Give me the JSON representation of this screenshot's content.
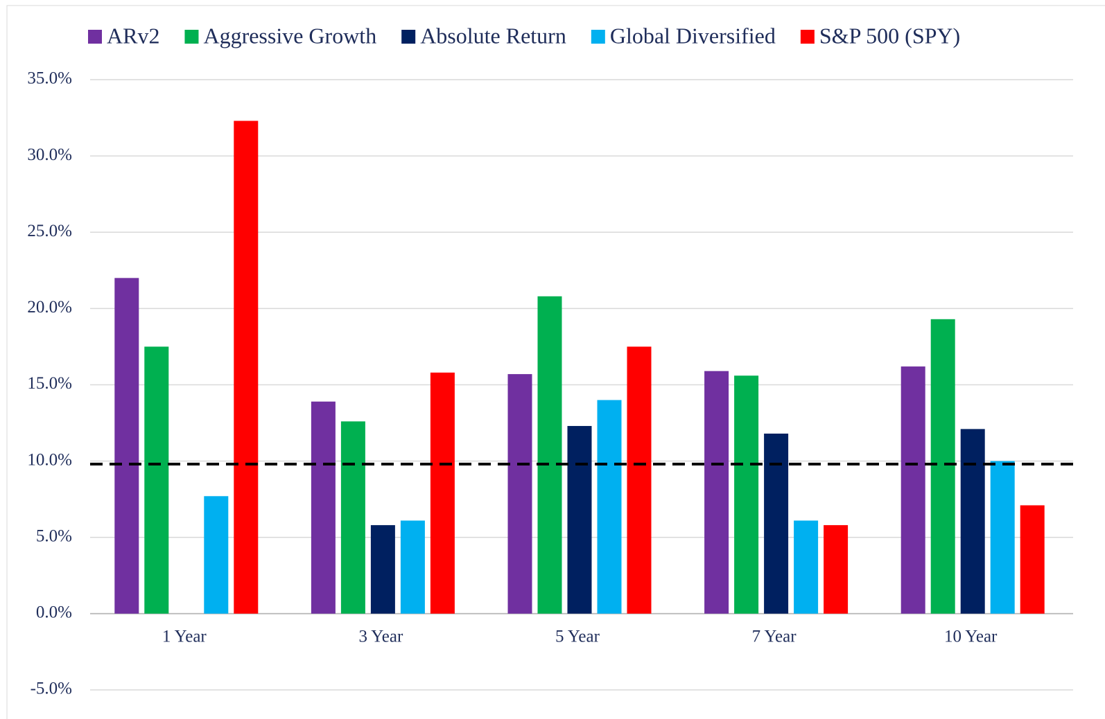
{
  "chart_data": {
    "type": "bar",
    "categories": [
      "1 Year",
      "3 Year",
      "5 Year",
      "7 Year",
      "10 Year"
    ],
    "series": [
      {
        "name": "ARv2",
        "color": "#7030a0",
        "values": [
          22.0,
          13.9,
          15.7,
          15.9,
          16.2
        ]
      },
      {
        "name": "Aggressive Growth",
        "color": "#00b050",
        "values": [
          17.5,
          12.6,
          20.8,
          15.6,
          19.3
        ]
      },
      {
        "name": "Absolute Return",
        "color": "#002060",
        "values": [
          null,
          5.8,
          12.3,
          11.8,
          12.1
        ]
      },
      {
        "name": "Global Diversified",
        "color": "#00b0f0",
        "values": [
          7.7,
          6.1,
          14.0,
          6.1,
          10.0
        ]
      },
      {
        "name": "S&P 500 (SPY)",
        "color": "#ff0000",
        "values": [
          32.3,
          15.8,
          17.5,
          5.8,
          7.1
        ]
      }
    ],
    "reference_line": 9.8,
    "ylim": [
      -5,
      35
    ],
    "yticks": [
      {
        "value": -5,
        "label": "-5.0%"
      },
      {
        "value": 0,
        "label": "0.0%"
      },
      {
        "value": 5,
        "label": "5.0%"
      },
      {
        "value": 10,
        "label": "10.0%"
      },
      {
        "value": 15,
        "label": "15.0%"
      },
      {
        "value": 20,
        "label": "20.0%"
      },
      {
        "value": 25,
        "label": "25.0%"
      },
      {
        "value": 30,
        "label": "30.0%"
      },
      {
        "value": 35,
        "label": "35.0%"
      }
    ],
    "grid": true,
    "legend": "top"
  }
}
